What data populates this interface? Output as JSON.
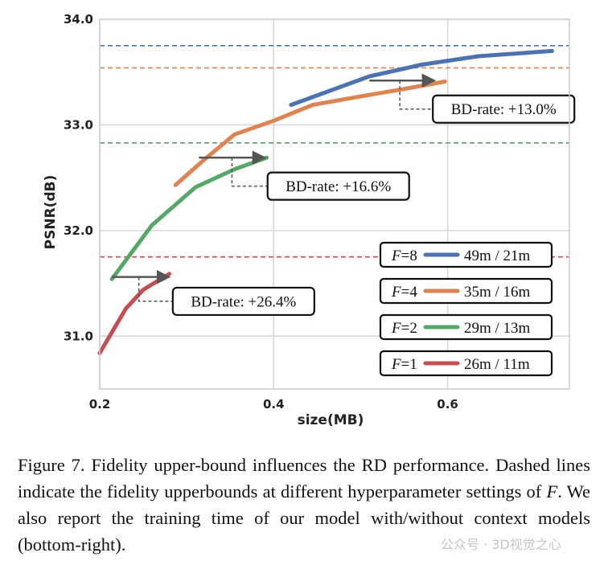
{
  "chart_data": {
    "type": "line",
    "xlabel": "size(MB)",
    "ylabel": "PSNR(dB)",
    "xlim": [
      0.2,
      0.74
    ],
    "ylim": [
      30.5,
      34.0
    ],
    "x_ticks": [
      0.2,
      0.4,
      0.6
    ],
    "x_tick_labels": [
      "0.2",
      "0.4",
      "0.6"
    ],
    "y_ticks": [
      31.0,
      32.0,
      33.0,
      34.0
    ],
    "y_tick_labels": [
      "31.0",
      "32.0",
      "33.0",
      "34.0"
    ],
    "grid": true,
    "legend_position": "bottom-right",
    "series": [
      {
        "label_prefix": "F",
        "label_value": "=8",
        "time": "49m / 21m",
        "color": "#4c72b0",
        "upper_bound": 33.75,
        "points": [
          [
            0.42,
            33.19
          ],
          [
            0.51,
            33.46
          ],
          [
            0.57,
            33.57
          ],
          [
            0.635,
            33.65
          ],
          [
            0.72,
            33.7
          ]
        ]
      },
      {
        "label_prefix": "F",
        "label_value": "=4",
        "time": "35m / 16m",
        "color": "#dd8452",
        "upper_bound": 33.54,
        "points": [
          [
            0.287,
            32.43
          ],
          [
            0.32,
            32.67
          ],
          [
            0.355,
            32.91
          ],
          [
            0.4,
            33.04
          ],
          [
            0.445,
            33.19
          ],
          [
            0.5,
            33.27
          ],
          [
            0.55,
            33.34
          ],
          [
            0.597,
            33.41
          ]
        ]
      },
      {
        "label_prefix": "F",
        "label_value": "=2",
        "time": "29m / 13m",
        "color": "#55a868",
        "upper_bound": 32.83,
        "points": [
          [
            0.214,
            31.54
          ],
          [
            0.26,
            32.05
          ],
          [
            0.31,
            32.41
          ],
          [
            0.355,
            32.58
          ],
          [
            0.392,
            32.69
          ]
        ]
      },
      {
        "label_prefix": "F",
        "label_value": "=1",
        "time": "26m / 11m",
        "color": "#c44e52",
        "upper_bound": 31.75,
        "points": [
          [
            0.2,
            30.84
          ],
          [
            0.23,
            31.26
          ],
          [
            0.25,
            31.44
          ],
          [
            0.28,
            31.59
          ]
        ]
      }
    ],
    "annotations": [
      {
        "text": "BD-rate: +13.0%",
        "arrow_from": [
          0.51,
          33.42
        ],
        "arrow_to": [
          0.585,
          33.42
        ],
        "drop_x": 0.545,
        "box_anchor": [
          0.583,
          33.15
        ]
      },
      {
        "text": "BD-rate: +16.6%",
        "arrow_from": [
          0.314,
          32.69
        ],
        "arrow_to": [
          0.39,
          32.69
        ],
        "drop_x": 0.352,
        "box_anchor": [
          0.393,
          32.42
        ]
      },
      {
        "text": "BD-rate: +26.4%",
        "arrow_from": [
          0.214,
          31.56
        ],
        "arrow_to": [
          0.28,
          31.56
        ],
        "drop_x": 0.245,
        "box_anchor": [
          0.284,
          31.33
        ]
      }
    ]
  },
  "caption": {
    "lead": "Figure 7.",
    "text_before_F": " Fidelity upper-bound influences the RD performance. Dashed lines indicate the fidelity upperbounds at different hyperparameter settings of ",
    "F": "F",
    "text_after_F": ". We also report the training time of our model with/without context models (bottom-right)."
  },
  "watermark": "公众号 · 3D视觉之心"
}
